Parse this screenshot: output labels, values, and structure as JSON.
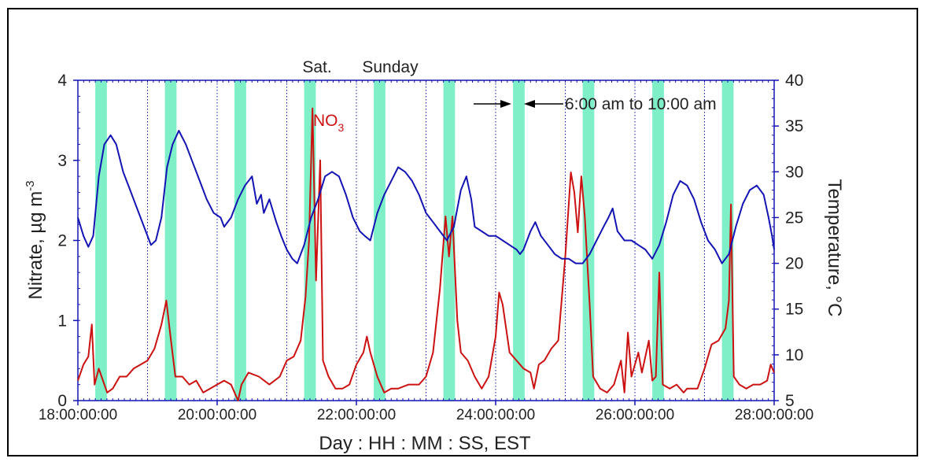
{
  "chart_data": {
    "type": "line",
    "xlabel": "Day : HH : MM : SS, EST",
    "ylabel_left": "Nitrate, µg m",
    "ylabel_left_sup": "-3",
    "ylabel_right": "Temperature, °C",
    "xlim": [
      18,
      28
    ],
    "ylim_left": [
      0,
      4
    ],
    "ylim_right": [
      5,
      40
    ],
    "x_ticks": [
      {
        "value": 18,
        "label": "18:00:00:00"
      },
      {
        "value": 20,
        "label": "20:00:00:00"
      },
      {
        "value": 22,
        "label": "22:00:00:00"
      },
      {
        "value": 24,
        "label": "24:00:00:00"
      },
      {
        "value": 26,
        "label": "26:00:00:00"
      },
      {
        "value": 28,
        "label": "28:00:00:00"
      }
    ],
    "y_ticks_left": [
      0,
      1,
      2,
      3,
      4
    ],
    "y_ticks_right": [
      5,
      10,
      15,
      20,
      25,
      30,
      35,
      40
    ],
    "day_dividers": [
      19,
      20,
      21,
      22,
      23,
      24,
      25,
      26,
      27
    ],
    "grid": "dotted vertical lines at day boundaries",
    "shaded_band_hours": {
      "start": 6,
      "end": 10
    },
    "annotations": {
      "weekend_left": "Sat.",
      "weekend_right": "Sunday",
      "band_text": "6:00 am to 10:00 am",
      "series_label": "NO",
      "series_label_sub": "3"
    },
    "series": [
      {
        "name": "NO3",
        "axis": "left",
        "color": "#cc1111",
        "points": [
          [
            18.0,
            0.25
          ],
          [
            18.08,
            0.45
          ],
          [
            18.15,
            0.55
          ],
          [
            18.2,
            0.95
          ],
          [
            18.24,
            0.2
          ],
          [
            18.3,
            0.4
          ],
          [
            18.34,
            0.3
          ],
          [
            18.42,
            0.1
          ],
          [
            18.5,
            0.15
          ],
          [
            18.6,
            0.3
          ],
          [
            18.7,
            0.3
          ],
          [
            18.8,
            0.4
          ],
          [
            18.9,
            0.45
          ],
          [
            19.0,
            0.5
          ],
          [
            19.1,
            0.65
          ],
          [
            19.2,
            0.95
          ],
          [
            19.27,
            1.25
          ],
          [
            19.33,
            0.8
          ],
          [
            19.4,
            0.3
          ],
          [
            19.5,
            0.3
          ],
          [
            19.6,
            0.2
          ],
          [
            19.7,
            0.25
          ],
          [
            19.8,
            0.1
          ],
          [
            19.9,
            0.15
          ],
          [
            20.0,
            0.2
          ],
          [
            20.1,
            0.25
          ],
          [
            20.2,
            0.2
          ],
          [
            20.3,
            0.0
          ],
          [
            20.35,
            0.2
          ],
          [
            20.45,
            0.35
          ],
          [
            20.6,
            0.3
          ],
          [
            20.75,
            0.2
          ],
          [
            20.9,
            0.3
          ],
          [
            21.0,
            0.5
          ],
          [
            21.1,
            0.55
          ],
          [
            21.2,
            0.75
          ],
          [
            21.27,
            1.3
          ],
          [
            21.32,
            2.0
          ],
          [
            21.37,
            3.65
          ],
          [
            21.42,
            1.5
          ],
          [
            21.48,
            3.0
          ],
          [
            21.52,
            0.5
          ],
          [
            21.6,
            0.3
          ],
          [
            21.7,
            0.15
          ],
          [
            21.8,
            0.15
          ],
          [
            21.9,
            0.2
          ],
          [
            22.0,
            0.45
          ],
          [
            22.1,
            0.6
          ],
          [
            22.15,
            0.8
          ],
          [
            22.2,
            0.6
          ],
          [
            22.3,
            0.3
          ],
          [
            22.4,
            0.1
          ],
          [
            22.5,
            0.15
          ],
          [
            22.6,
            0.15
          ],
          [
            22.75,
            0.2
          ],
          [
            22.9,
            0.2
          ],
          [
            23.0,
            0.3
          ],
          [
            23.1,
            0.6
          ],
          [
            23.2,
            1.4
          ],
          [
            23.28,
            2.3
          ],
          [
            23.33,
            1.8
          ],
          [
            23.38,
            2.3
          ],
          [
            23.45,
            1.0
          ],
          [
            23.5,
            0.6
          ],
          [
            23.6,
            0.5
          ],
          [
            23.7,
            0.3
          ],
          [
            23.8,
            0.15
          ],
          [
            23.9,
            0.3
          ],
          [
            24.0,
            0.8
          ],
          [
            24.05,
            1.35
          ],
          [
            24.1,
            1.2
          ],
          [
            24.2,
            0.6
          ],
          [
            24.3,
            0.5
          ],
          [
            24.4,
            0.4
          ],
          [
            24.5,
            0.35
          ],
          [
            24.55,
            0.15
          ],
          [
            24.62,
            0.45
          ],
          [
            24.7,
            0.5
          ],
          [
            24.8,
            0.65
          ],
          [
            24.9,
            0.75
          ],
          [
            25.0,
            1.8
          ],
          [
            25.08,
            2.85
          ],
          [
            25.13,
            2.6
          ],
          [
            25.18,
            2.1
          ],
          [
            25.23,
            2.8
          ],
          [
            25.28,
            2.3
          ],
          [
            25.35,
            1.2
          ],
          [
            25.4,
            0.3
          ],
          [
            25.5,
            0.15
          ],
          [
            25.6,
            0.1
          ],
          [
            25.7,
            0.2
          ],
          [
            25.8,
            0.5
          ],
          [
            25.85,
            0.1
          ],
          [
            25.9,
            0.85
          ],
          [
            25.95,
            0.3
          ],
          [
            26.05,
            0.6
          ],
          [
            26.1,
            0.35
          ],
          [
            26.2,
            0.75
          ],
          [
            26.25,
            0.25
          ],
          [
            26.3,
            0.3
          ],
          [
            26.35,
            1.6
          ],
          [
            26.4,
            0.2
          ],
          [
            26.5,
            0.15
          ],
          [
            26.6,
            0.2
          ],
          [
            26.7,
            0.1
          ],
          [
            26.75,
            0.15
          ],
          [
            26.8,
            0.15
          ],
          [
            26.9,
            0.15
          ],
          [
            27.0,
            0.4
          ],
          [
            27.1,
            0.7
          ],
          [
            27.2,
            0.75
          ],
          [
            27.3,
            0.9
          ],
          [
            27.35,
            1.25
          ],
          [
            27.38,
            2.45
          ],
          [
            27.42,
            0.3
          ],
          [
            27.5,
            0.2
          ],
          [
            27.6,
            0.15
          ],
          [
            27.7,
            0.2
          ],
          [
            27.8,
            0.2
          ],
          [
            27.9,
            0.25
          ],
          [
            27.95,
            0.45
          ],
          [
            28.0,
            0.35
          ]
        ]
      },
      {
        "name": "Temperature",
        "axis": "right",
        "color": "#1414b4",
        "points": [
          [
            18.0,
            25.0
          ],
          [
            18.08,
            23.0
          ],
          [
            18.15,
            21.8
          ],
          [
            18.22,
            23.0
          ],
          [
            18.3,
            29.5
          ],
          [
            18.38,
            33.0
          ],
          [
            18.47,
            34.0
          ],
          [
            18.55,
            33.0
          ],
          [
            18.65,
            30.0
          ],
          [
            18.75,
            28.0
          ],
          [
            18.85,
            26.0
          ],
          [
            18.95,
            24.0
          ],
          [
            19.05,
            22.0
          ],
          [
            19.12,
            22.5
          ],
          [
            19.2,
            25.0
          ],
          [
            19.28,
            30.5
          ],
          [
            19.36,
            33.0
          ],
          [
            19.45,
            34.5
          ],
          [
            19.55,
            33.0
          ],
          [
            19.65,
            31.0
          ],
          [
            19.75,
            29.0
          ],
          [
            19.85,
            27.0
          ],
          [
            19.95,
            25.5
          ],
          [
            20.05,
            25.0
          ],
          [
            20.1,
            24.0
          ],
          [
            20.2,
            25.0
          ],
          [
            20.3,
            27.0
          ],
          [
            20.4,
            28.5
          ],
          [
            20.5,
            29.5
          ],
          [
            20.57,
            26.5
          ],
          [
            20.63,
            27.5
          ],
          [
            20.67,
            25.5
          ],
          [
            20.75,
            27.0
          ],
          [
            20.85,
            24.5
          ],
          [
            20.92,
            23.0
          ],
          [
            21.0,
            21.5
          ],
          [
            21.08,
            20.5
          ],
          [
            21.15,
            20.0
          ],
          [
            21.25,
            22.0
          ],
          [
            21.35,
            25.0
          ],
          [
            21.45,
            27.0
          ],
          [
            21.55,
            29.5
          ],
          [
            21.65,
            30.0
          ],
          [
            21.75,
            29.5
          ],
          [
            21.85,
            27.5
          ],
          [
            21.95,
            25.0
          ],
          [
            22.05,
            23.5
          ],
          [
            22.12,
            23.0
          ],
          [
            22.2,
            22.5
          ],
          [
            22.3,
            25.5
          ],
          [
            22.4,
            27.5
          ],
          [
            22.5,
            29.0
          ],
          [
            22.6,
            30.5
          ],
          [
            22.7,
            30.0
          ],
          [
            22.8,
            29.0
          ],
          [
            22.9,
            27.5
          ],
          [
            23.0,
            25.5
          ],
          [
            23.1,
            24.5
          ],
          [
            23.2,
            23.5
          ],
          [
            23.3,
            22.5
          ],
          [
            23.4,
            24.0
          ],
          [
            23.5,
            28.0
          ],
          [
            23.58,
            29.5
          ],
          [
            23.65,
            27.0
          ],
          [
            23.7,
            24.0
          ],
          [
            23.8,
            23.5
          ],
          [
            23.9,
            23.0
          ],
          [
            24.0,
            23.0
          ],
          [
            24.1,
            22.5
          ],
          [
            24.2,
            22.0
          ],
          [
            24.3,
            21.5
          ],
          [
            24.35,
            21.0
          ],
          [
            24.4,
            21.5
          ],
          [
            24.5,
            23.5
          ],
          [
            24.57,
            24.5
          ],
          [
            24.65,
            23.0
          ],
          [
            24.75,
            22.0
          ],
          [
            24.85,
            21.0
          ],
          [
            24.95,
            20.5
          ],
          [
            25.05,
            20.5
          ],
          [
            25.15,
            20.0
          ],
          [
            25.25,
            20.0
          ],
          [
            25.35,
            21.0
          ],
          [
            25.45,
            22.5
          ],
          [
            25.55,
            24.0
          ],
          [
            25.62,
            25.0
          ],
          [
            25.68,
            26.0
          ],
          [
            25.75,
            23.5
          ],
          [
            25.85,
            22.5
          ],
          [
            25.95,
            22.5
          ],
          [
            26.05,
            22.0
          ],
          [
            26.15,
            21.5
          ],
          [
            26.25,
            20.5
          ],
          [
            26.35,
            22.0
          ],
          [
            26.45,
            24.5
          ],
          [
            26.55,
            27.5
          ],
          [
            26.65,
            29.0
          ],
          [
            26.75,
            28.5
          ],
          [
            26.85,
            27.0
          ],
          [
            26.95,
            24.5
          ],
          [
            27.05,
            22.5
          ],
          [
            27.15,
            21.5
          ],
          [
            27.25,
            20.0
          ],
          [
            27.35,
            21.0
          ],
          [
            27.45,
            24.0
          ],
          [
            27.55,
            26.5
          ],
          [
            27.65,
            28.0
          ],
          [
            27.75,
            28.5
          ],
          [
            27.85,
            27.5
          ],
          [
            27.92,
            25.0
          ],
          [
            27.97,
            23.0
          ],
          [
            28.0,
            21.5
          ]
        ]
      }
    ]
  }
}
